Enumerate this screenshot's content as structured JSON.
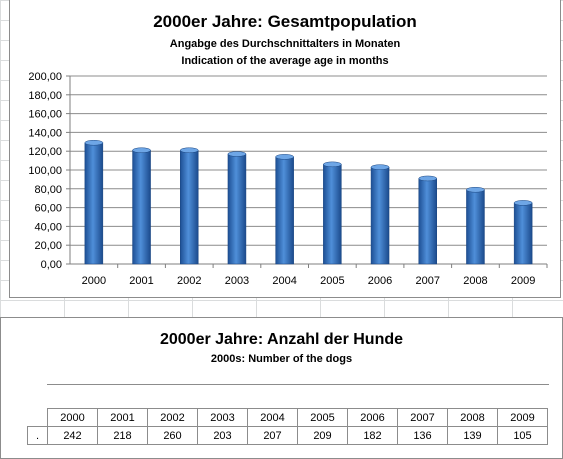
{
  "chart_data": {
    "type": "bar",
    "title": "2000er Jahre: Gesamtpopulation",
    "subtitle_1": "Angabge des Durchschnittalters in Monaten",
    "subtitle_2": "Indication of the average age in months",
    "categories": [
      "2000",
      "2001",
      "2002",
      "2003",
      "2004",
      "2005",
      "2006",
      "2007",
      "2008",
      "2009"
    ],
    "values": [
      129,
      121,
      121,
      117,
      114,
      106,
      103,
      91,
      79,
      65
    ],
    "ylim": [
      0,
      200
    ],
    "yticks": [
      "0,00",
      "20,00",
      "40,00",
      "60,00",
      "80,00",
      "100,00",
      "120,00",
      "140,00",
      "160,00",
      "180,00",
      "200,00"
    ],
    "grid": true,
    "bar_color": "#2f6bb5"
  },
  "table": {
    "title": "2000er Jahre: Anzahl der Hunde",
    "subtitle": "2000s: Number of the dogs",
    "row_label": ".",
    "years": [
      "2000",
      "2001",
      "2002",
      "2003",
      "2004",
      "2005",
      "2006",
      "2007",
      "2008",
      "2009"
    ],
    "counts": [
      "242",
      "218",
      "260",
      "203",
      "207",
      "209",
      "182",
      "136",
      "139",
      "105"
    ]
  }
}
